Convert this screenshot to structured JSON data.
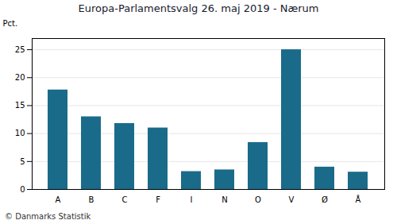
{
  "chart_data": {
    "type": "bar",
    "title": "Europa-Parlamentsvalg 26. maj 2019 - Nærum",
    "categories": [
      "A",
      "B",
      "C",
      "F",
      "I",
      "N",
      "O",
      "V",
      "Ø",
      "Å"
    ],
    "values": [
      17.8,
      13.0,
      11.8,
      11.0,
      3.2,
      3.5,
      8.4,
      25.0,
      4.0,
      3.1
    ],
    "color": "#1a6b8a",
    "ylabel": "Pct.",
    "ylim": [
      0,
      27
    ],
    "yticks": [
      0,
      5,
      10,
      15,
      20,
      25
    ],
    "grid": true,
    "footer": "© Danmarks Statistik"
  }
}
